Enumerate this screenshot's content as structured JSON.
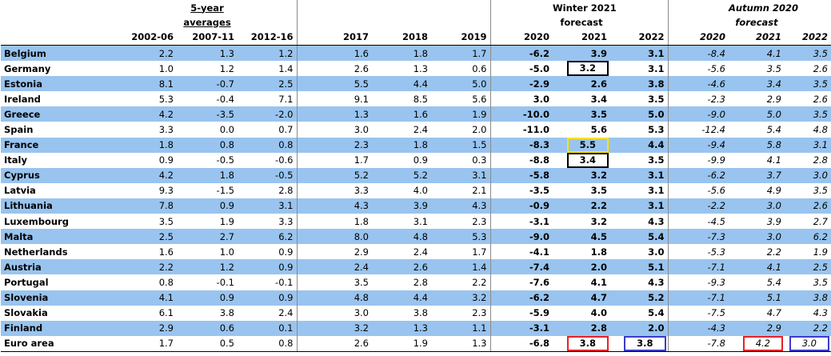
{
  "header": {
    "group_5yr_line1": "5-year",
    "group_5yr_line2": "averages",
    "group_winter_line1": "Winter 2021",
    "group_winter_line2": "forecast",
    "group_autumn_line1": "Autumn 2020",
    "group_autumn_line2": "forecast",
    "columns": [
      "2002-06",
      "2007-11",
      "2012-16",
      "2017",
      "2018",
      "2019",
      "2020",
      "2021",
      "2022",
      "2020",
      "2021",
      "2022"
    ]
  },
  "rows": [
    {
      "country": "Belgium",
      "avg1": "2.2",
      "avg2": "1.3",
      "avg3": "1.2",
      "y2017": "1.6",
      "y2018": "1.8",
      "y2019": "1.7",
      "w2020": "-6.2",
      "w2021": "3.9",
      "w2022": "3.1",
      "a2020": "-8.4",
      "a2021": "4.1",
      "a2022": "3.5"
    },
    {
      "country": "Germany",
      "avg1": "1.0",
      "avg2": "1.2",
      "avg3": "1.4",
      "y2017": "2.6",
      "y2018": "1.3",
      "y2019": "0.6",
      "w2020": "-5.0",
      "w2021": "3.2",
      "w2022": "3.1",
      "a2020": "-5.6",
      "a2021": "3.5",
      "a2022": "2.6"
    },
    {
      "country": "Estonia",
      "avg1": "8.1",
      "avg2": "-0.7",
      "avg3": "2.5",
      "y2017": "5.5",
      "y2018": "4.4",
      "y2019": "5.0",
      "w2020": "-2.9",
      "w2021": "2.6",
      "w2022": "3.8",
      "a2020": "-4.6",
      "a2021": "3.4",
      "a2022": "3.5"
    },
    {
      "country": "Ireland",
      "avg1": "5.3",
      "avg2": "-0.4",
      "avg3": "7.1",
      "y2017": "9.1",
      "y2018": "8.5",
      "y2019": "5.6",
      "w2020": "3.0",
      "w2021": "3.4",
      "w2022": "3.5",
      "a2020": "-2.3",
      "a2021": "2.9",
      "a2022": "2.6"
    },
    {
      "country": "Greece",
      "avg1": "4.2",
      "avg2": "-3.5",
      "avg3": "-2.0",
      "y2017": "1.3",
      "y2018": "1.6",
      "y2019": "1.9",
      "w2020": "-10.0",
      "w2021": "3.5",
      "w2022": "5.0",
      "a2020": "-9.0",
      "a2021": "5.0",
      "a2022": "3.5"
    },
    {
      "country": "Spain",
      "avg1": "3.3",
      "avg2": "0.0",
      "avg3": "0.7",
      "y2017": "3.0",
      "y2018": "2.4",
      "y2019": "2.0",
      "w2020": "-11.0",
      "w2021": "5.6",
      "w2022": "5.3",
      "a2020": "-12.4",
      "a2021": "5.4",
      "a2022": "4.8"
    },
    {
      "country": "France",
      "avg1": "1.8",
      "avg2": "0.8",
      "avg3": "0.8",
      "y2017": "2.3",
      "y2018": "1.8",
      "y2019": "1.5",
      "w2020": "-8.3",
      "w2021": "5.5",
      "w2022": "4.4",
      "a2020": "-9.4",
      "a2021": "5.8",
      "a2022": "3.1"
    },
    {
      "country": "Italy",
      "avg1": "0.9",
      "avg2": "-0.5",
      "avg3": "-0.6",
      "y2017": "1.7",
      "y2018": "0.9",
      "y2019": "0.3",
      "w2020": "-8.8",
      "w2021": "3.4",
      "w2022": "3.5",
      "a2020": "-9.9",
      "a2021": "4.1",
      "a2022": "2.8"
    },
    {
      "country": "Cyprus",
      "avg1": "4.2",
      "avg2": "1.8",
      "avg3": "-0.5",
      "y2017": "5.2",
      "y2018": "5.2",
      "y2019": "3.1",
      "w2020": "-5.8",
      "w2021": "3.2",
      "w2022": "3.1",
      "a2020": "-6.2",
      "a2021": "3.7",
      "a2022": "3.0"
    },
    {
      "country": "Latvia",
      "avg1": "9.3",
      "avg2": "-1.5",
      "avg3": "2.8",
      "y2017": "3.3",
      "y2018": "4.0",
      "y2019": "2.1",
      "w2020": "-3.5",
      "w2021": "3.5",
      "w2022": "3.1",
      "a2020": "-5.6",
      "a2021": "4.9",
      "a2022": "3.5"
    },
    {
      "country": "Lithuania",
      "avg1": "7.8",
      "avg2": "0.9",
      "avg3": "3.1",
      "y2017": "4.3",
      "y2018": "3.9",
      "y2019": "4.3",
      "w2020": "-0.9",
      "w2021": "2.2",
      "w2022": "3.1",
      "a2020": "-2.2",
      "a2021": "3.0",
      "a2022": "2.6"
    },
    {
      "country": "Luxembourg",
      "avg1": "3.5",
      "avg2": "1.9",
      "avg3": "3.3",
      "y2017": "1.8",
      "y2018": "3.1",
      "y2019": "2.3",
      "w2020": "-3.1",
      "w2021": "3.2",
      "w2022": "4.3",
      "a2020": "-4.5",
      "a2021": "3.9",
      "a2022": "2.7"
    },
    {
      "country": "Malta",
      "avg1": "2.5",
      "avg2": "2.7",
      "avg3": "6.2",
      "y2017": "8.0",
      "y2018": "4.8",
      "y2019": "5.3",
      "w2020": "-9.0",
      "w2021": "4.5",
      "w2022": "5.4",
      "a2020": "-7.3",
      "a2021": "3.0",
      "a2022": "6.2"
    },
    {
      "country": "Netherlands",
      "avg1": "1.6",
      "avg2": "1.0",
      "avg3": "0.9",
      "y2017": "2.9",
      "y2018": "2.4",
      "y2019": "1.7",
      "w2020": "-4.1",
      "w2021": "1.8",
      "w2022": "3.0",
      "a2020": "-5.3",
      "a2021": "2.2",
      "a2022": "1.9"
    },
    {
      "country": "Austria",
      "avg1": "2.2",
      "avg2": "1.2",
      "avg3": "0.9",
      "y2017": "2.4",
      "y2018": "2.6",
      "y2019": "1.4",
      "w2020": "-7.4",
      "w2021": "2.0",
      "w2022": "5.1",
      "a2020": "-7.1",
      "a2021": "4.1",
      "a2022": "2.5"
    },
    {
      "country": "Portugal",
      "avg1": "0.8",
      "avg2": "-0.1",
      "avg3": "-0.1",
      "y2017": "3.5",
      "y2018": "2.8",
      "y2019": "2.2",
      "w2020": "-7.6",
      "w2021": "4.1",
      "w2022": "4.3",
      "a2020": "-9.3",
      "a2021": "5.4",
      "a2022": "3.5"
    },
    {
      "country": "Slovenia",
      "avg1": "4.1",
      "avg2": "0.9",
      "avg3": "0.9",
      "y2017": "4.8",
      "y2018": "4.4",
      "y2019": "3.2",
      "w2020": "-6.2",
      "w2021": "4.7",
      "w2022": "5.2",
      "a2020": "-7.1",
      "a2021": "5.1",
      "a2022": "3.8"
    },
    {
      "country": "Slovakia",
      "avg1": "6.1",
      "avg2": "3.8",
      "avg3": "2.4",
      "y2017": "3.0",
      "y2018": "3.8",
      "y2019": "2.3",
      "w2020": "-5.9",
      "w2021": "4.0",
      "w2022": "5.4",
      "a2020": "-7.5",
      "a2021": "4.7",
      "a2022": "4.3"
    },
    {
      "country": "Finland",
      "avg1": "2.9",
      "avg2": "0.6",
      "avg3": "0.1",
      "y2017": "3.2",
      "y2018": "1.3",
      "y2019": "1.1",
      "w2020": "-3.1",
      "w2021": "2.8",
      "w2022": "2.0",
      "a2020": "-4.3",
      "a2021": "2.9",
      "a2022": "2.2"
    },
    {
      "country": "Euro area",
      "avg1": "1.7",
      "avg2": "0.5",
      "avg3": "0.8",
      "y2017": "2.6",
      "y2018": "1.9",
      "y2019": "1.3",
      "w2020": "-6.8",
      "w2021": "3.8",
      "w2022": "3.8",
      "a2020": "-7.8",
      "a2021": "4.2",
      "a2022": "3.0"
    }
  ],
  "highlights": {
    "box_black": "#000000",
    "box_yellow": "#ffe100",
    "box_red": "#e8202a",
    "box_blue": "#3c3cc8",
    "row_band": "#99c4ef"
  }
}
